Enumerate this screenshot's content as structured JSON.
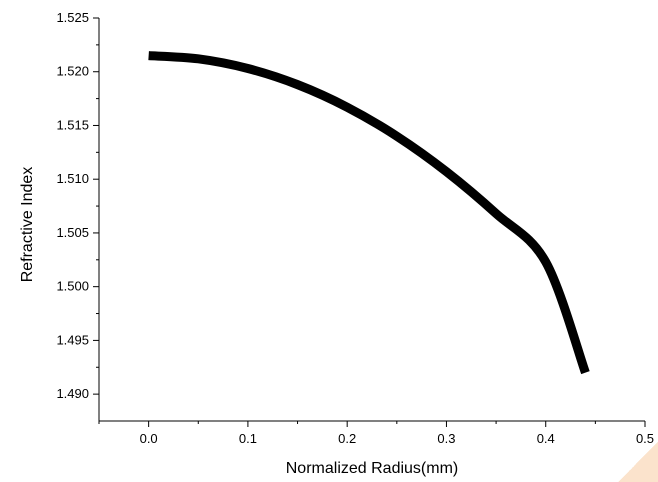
{
  "chart_data": {
    "type": "line",
    "title": "",
    "xlabel": "Normalized Radius(mm)",
    "ylabel": "Refractive Index",
    "xlim": [
      -0.05,
      0.5
    ],
    "ylim": [
      1.4875,
      1.525
    ],
    "x_ticks": [
      0.0,
      0.1,
      0.2,
      0.3,
      0.4,
      0.5
    ],
    "x_tick_labels": [
      "0.0",
      "0.1",
      "0.2",
      "0.3",
      "0.4",
      "0.5"
    ],
    "y_ticks": [
      1.49,
      1.495,
      1.5,
      1.505,
      1.51,
      1.515,
      1.52,
      1.525
    ],
    "y_tick_labels": [
      "1.490",
      "1.495",
      "1.500",
      "1.505",
      "1.510",
      "1.515",
      "1.520",
      "1.525"
    ],
    "grid": false,
    "series": [
      {
        "color": "#000000",
        "x": [
          0.0,
          0.05,
          0.1,
          0.15,
          0.2,
          0.25,
          0.3,
          0.35,
          0.4,
          0.44
        ],
        "y": [
          1.5215,
          1.5212,
          1.5203,
          1.5188,
          1.5167,
          1.514,
          1.5107,
          1.5068,
          1.5023,
          1.492
        ]
      }
    ]
  }
}
